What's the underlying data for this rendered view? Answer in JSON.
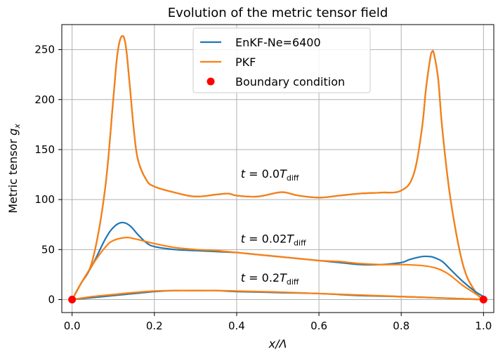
{
  "chart_data": {
    "type": "line",
    "title": "Evolution of the metric tensor field",
    "xlabel": "x/Λ",
    "ylabel": "Metric tensor g_x",
    "xlim": [
      -0.025,
      1.025
    ],
    "ylim": [
      -13,
      275
    ],
    "grid": true,
    "legend_position": "top-center",
    "xticks": [
      0.0,
      0.2,
      0.4,
      0.6,
      0.8,
      1.0
    ],
    "xtick_labels": [
      "0.0",
      "0.2",
      "0.4",
      "0.6",
      "0.8",
      "1.0"
    ],
    "yticks": [
      0,
      50,
      100,
      150,
      200,
      250
    ],
    "ytick_labels": [
      "0",
      "50",
      "100",
      "150",
      "200",
      "250"
    ],
    "colors": {
      "enkf": "#1f77b4",
      "pkf": "#ff7f0e",
      "boundary": "#ff0000"
    },
    "legend": [
      "EnKF-Ne=6400",
      "PKF",
      "Boundary condition"
    ],
    "annotations": [
      {
        "text": "t = 0.0T",
        "sub": "diff",
        "x": 0.41,
        "y": 122
      },
      {
        "text": "t = 0.02T",
        "sub": "diff",
        "x": 0.41,
        "y": 57
      },
      {
        "text": "t = 0.2T",
        "sub": "diff",
        "x": 0.41,
        "y": 18
      }
    ],
    "series": [
      {
        "name": "EnKF-Ne=6400",
        "time": "t=0.0",
        "color": "#1f77b4",
        "points": [
          [
            0.0,
            0
          ],
          [
            0.02,
            15
          ],
          [
            0.05,
            40
          ],
          [
            0.08,
            110
          ],
          [
            0.1,
            200
          ],
          [
            0.11,
            245
          ],
          [
            0.12,
            263
          ],
          [
            0.13,
            255
          ],
          [
            0.14,
            215
          ],
          [
            0.15,
            170
          ],
          [
            0.16,
            140
          ],
          [
            0.18,
            120
          ],
          [
            0.2,
            113
          ],
          [
            0.25,
            107
          ],
          [
            0.3,
            103
          ],
          [
            0.35,
            105
          ],
          [
            0.38,
            106
          ],
          [
            0.4,
            104
          ],
          [
            0.45,
            103
          ],
          [
            0.5,
            107
          ],
          [
            0.52,
            107
          ],
          [
            0.55,
            104
          ],
          [
            0.6,
            102
          ],
          [
            0.65,
            104
          ],
          [
            0.7,
            106
          ],
          [
            0.75,
            107
          ],
          [
            0.8,
            109
          ],
          [
            0.83,
            125
          ],
          [
            0.85,
            170
          ],
          [
            0.86,
            210
          ],
          [
            0.87,
            240
          ],
          [
            0.875,
            248
          ],
          [
            0.88,
            245
          ],
          [
            0.89,
            220
          ],
          [
            0.9,
            170
          ],
          [
            0.92,
            100
          ],
          [
            0.95,
            35
          ],
          [
            0.98,
            8
          ],
          [
            1.0,
            0
          ]
        ]
      },
      {
        "name": "PKF",
        "time": "t=0.0",
        "color": "#ff7f0e",
        "points": [
          [
            0.0,
            0
          ],
          [
            0.02,
            15
          ],
          [
            0.05,
            40
          ],
          [
            0.08,
            110
          ],
          [
            0.1,
            200
          ],
          [
            0.11,
            245
          ],
          [
            0.12,
            263
          ],
          [
            0.13,
            255
          ],
          [
            0.14,
            215
          ],
          [
            0.15,
            170
          ],
          [
            0.16,
            140
          ],
          [
            0.18,
            120
          ],
          [
            0.2,
            113
          ],
          [
            0.25,
            107
          ],
          [
            0.3,
            103
          ],
          [
            0.35,
            105
          ],
          [
            0.38,
            106
          ],
          [
            0.4,
            104
          ],
          [
            0.45,
            103
          ],
          [
            0.5,
            107
          ],
          [
            0.52,
            107
          ],
          [
            0.55,
            104
          ],
          [
            0.6,
            102
          ],
          [
            0.65,
            104
          ],
          [
            0.7,
            106
          ],
          [
            0.75,
            107
          ],
          [
            0.8,
            109
          ],
          [
            0.83,
            125
          ],
          [
            0.85,
            170
          ],
          [
            0.86,
            210
          ],
          [
            0.87,
            240
          ],
          [
            0.875,
            248
          ],
          [
            0.88,
            245
          ],
          [
            0.89,
            220
          ],
          [
            0.9,
            170
          ],
          [
            0.92,
            100
          ],
          [
            0.95,
            35
          ],
          [
            0.98,
            8
          ],
          [
            1.0,
            0
          ]
        ]
      },
      {
        "name": "EnKF-Ne=6400",
        "time": "t=0.02",
        "color": "#1f77b4",
        "points": [
          [
            0.0,
            0
          ],
          [
            0.02,
            15
          ],
          [
            0.05,
            35
          ],
          [
            0.08,
            60
          ],
          [
            0.1,
            72
          ],
          [
            0.12,
            77
          ],
          [
            0.14,
            74
          ],
          [
            0.16,
            65
          ],
          [
            0.18,
            57
          ],
          [
            0.2,
            53
          ],
          [
            0.25,
            50
          ],
          [
            0.3,
            49
          ],
          [
            0.35,
            48
          ],
          [
            0.4,
            47
          ],
          [
            0.45,
            45
          ],
          [
            0.5,
            43
          ],
          [
            0.55,
            41
          ],
          [
            0.6,
            39
          ],
          [
            0.65,
            37
          ],
          [
            0.7,
            35
          ],
          [
            0.75,
            35
          ],
          [
            0.8,
            37
          ],
          [
            0.82,
            40
          ],
          [
            0.85,
            43
          ],
          [
            0.87,
            43
          ],
          [
            0.88,
            42
          ],
          [
            0.9,
            38
          ],
          [
            0.92,
            30
          ],
          [
            0.95,
            18
          ],
          [
            0.98,
            8
          ],
          [
            1.0,
            3
          ]
        ]
      },
      {
        "name": "PKF",
        "time": "t=0.02",
        "color": "#ff7f0e",
        "points": [
          [
            0.0,
            0
          ],
          [
            0.02,
            15
          ],
          [
            0.05,
            35
          ],
          [
            0.08,
            52
          ],
          [
            0.1,
            59
          ],
          [
            0.13,
            62
          ],
          [
            0.15,
            61
          ],
          [
            0.18,
            58
          ],
          [
            0.2,
            56
          ],
          [
            0.25,
            52
          ],
          [
            0.3,
            50
          ],
          [
            0.35,
            49
          ],
          [
            0.4,
            47
          ],
          [
            0.45,
            45
          ],
          [
            0.5,
            43
          ],
          [
            0.55,
            41
          ],
          [
            0.6,
            39
          ],
          [
            0.65,
            38
          ],
          [
            0.7,
            36
          ],
          [
            0.75,
            35
          ],
          [
            0.8,
            35
          ],
          [
            0.85,
            34
          ],
          [
            0.88,
            32
          ],
          [
            0.9,
            29
          ],
          [
            0.92,
            24
          ],
          [
            0.95,
            14
          ],
          [
            0.98,
            6
          ],
          [
            1.0,
            0
          ]
        ]
      },
      {
        "name": "EnKF-Ne=6400",
        "time": "t=0.2",
        "color": "#1f77b4",
        "points": [
          [
            0.0,
            0
          ],
          [
            0.05,
            2
          ],
          [
            0.1,
            4
          ],
          [
            0.15,
            6
          ],
          [
            0.2,
            8
          ],
          [
            0.25,
            9
          ],
          [
            0.3,
            9
          ],
          [
            0.35,
            9
          ],
          [
            0.4,
            8
          ],
          [
            0.5,
            7
          ],
          [
            0.6,
            6
          ],
          [
            0.7,
            4
          ],
          [
            0.8,
            3
          ],
          [
            0.9,
            1.5
          ],
          [
            1.0,
            0
          ]
        ]
      },
      {
        "name": "PKF",
        "time": "t=0.2",
        "color": "#ff7f0e",
        "points": [
          [
            0.0,
            0
          ],
          [
            0.05,
            3
          ],
          [
            0.1,
            5
          ],
          [
            0.15,
            7
          ],
          [
            0.2,
            8.5
          ],
          [
            0.25,
            9
          ],
          [
            0.3,
            9
          ],
          [
            0.35,
            9
          ],
          [
            0.4,
            8.5
          ],
          [
            0.5,
            7.5
          ],
          [
            0.6,
            6
          ],
          [
            0.7,
            4.5
          ],
          [
            0.8,
            3
          ],
          [
            0.9,
            1.5
          ],
          [
            1.0,
            0
          ]
        ]
      }
    ],
    "boundary_points": [
      [
        0.0,
        0
      ],
      [
        1.0,
        0
      ]
    ]
  }
}
